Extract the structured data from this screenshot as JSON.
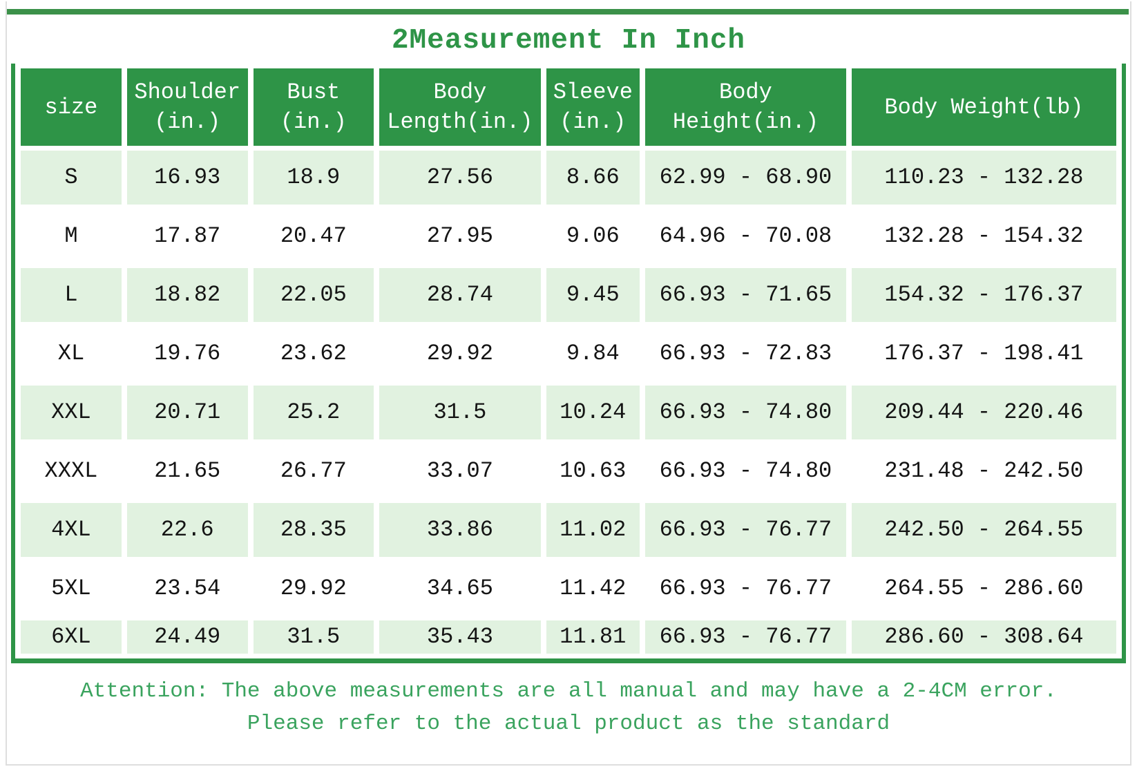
{
  "title": "2Measurement In Inch",
  "chart_data": {
    "type": "table",
    "title": "2Measurement In Inch",
    "columns": [
      "size",
      "Shoulder\n(in.)",
      "Bust\n(in.)",
      "Body\nLength(in.)",
      "Sleeve\n(in.)",
      "Body\nHeight(in.)",
      "Body Weight(lb)"
    ],
    "rows": [
      [
        "S",
        "16.93",
        "18.9",
        "27.56",
        "8.66",
        "62.99 - 68.90",
        "110.23 - 132.28"
      ],
      [
        "M",
        "17.87",
        "20.47",
        "27.95",
        "9.06",
        "64.96 - 70.08",
        "132.28 - 154.32"
      ],
      [
        "L",
        "18.82",
        "22.05",
        "28.74",
        "9.45",
        "66.93 - 71.65",
        "154.32 - 176.37"
      ],
      [
        "XL",
        "19.76",
        "23.62",
        "29.92",
        "9.84",
        "66.93 - 72.83",
        "176.37 - 198.41"
      ],
      [
        "XXL",
        "20.71",
        "25.2",
        "31.5",
        "10.24",
        "66.93 - 74.80",
        "209.44 - 220.46"
      ],
      [
        "XXXL",
        "21.65",
        "26.77",
        "33.07",
        "10.63",
        "66.93 - 74.80",
        "231.48 - 242.50"
      ],
      [
        "4XL",
        "22.6",
        "28.35",
        "33.86",
        "11.02",
        "66.93 - 76.77",
        "242.50 - 264.55"
      ],
      [
        "5XL",
        "23.54",
        "29.92",
        "34.65",
        "11.42",
        "66.93 - 76.77",
        "264.55 - 286.60"
      ],
      [
        "6XL",
        "24.49",
        "31.5",
        "35.43",
        "11.81",
        "66.93 - 76.77",
        "286.60 - 308.64"
      ]
    ],
    "legend_position": "none",
    "grid": false
  },
  "note": {
    "line1": "Attention: The above measurements are all manual and may have a 2-4CM error.",
    "line2": "Please refer to the actual product as the standard"
  },
  "colors": {
    "header_green": "#2e9447",
    "top_bar_green": "#3b9149",
    "row_light_green": "#e1f2e0",
    "title_green": "#2e9447",
    "note_green": "#3aa35e",
    "frame_gray": "#dedede",
    "cell_text": "#141414",
    "header_text": "#ffffff"
  }
}
